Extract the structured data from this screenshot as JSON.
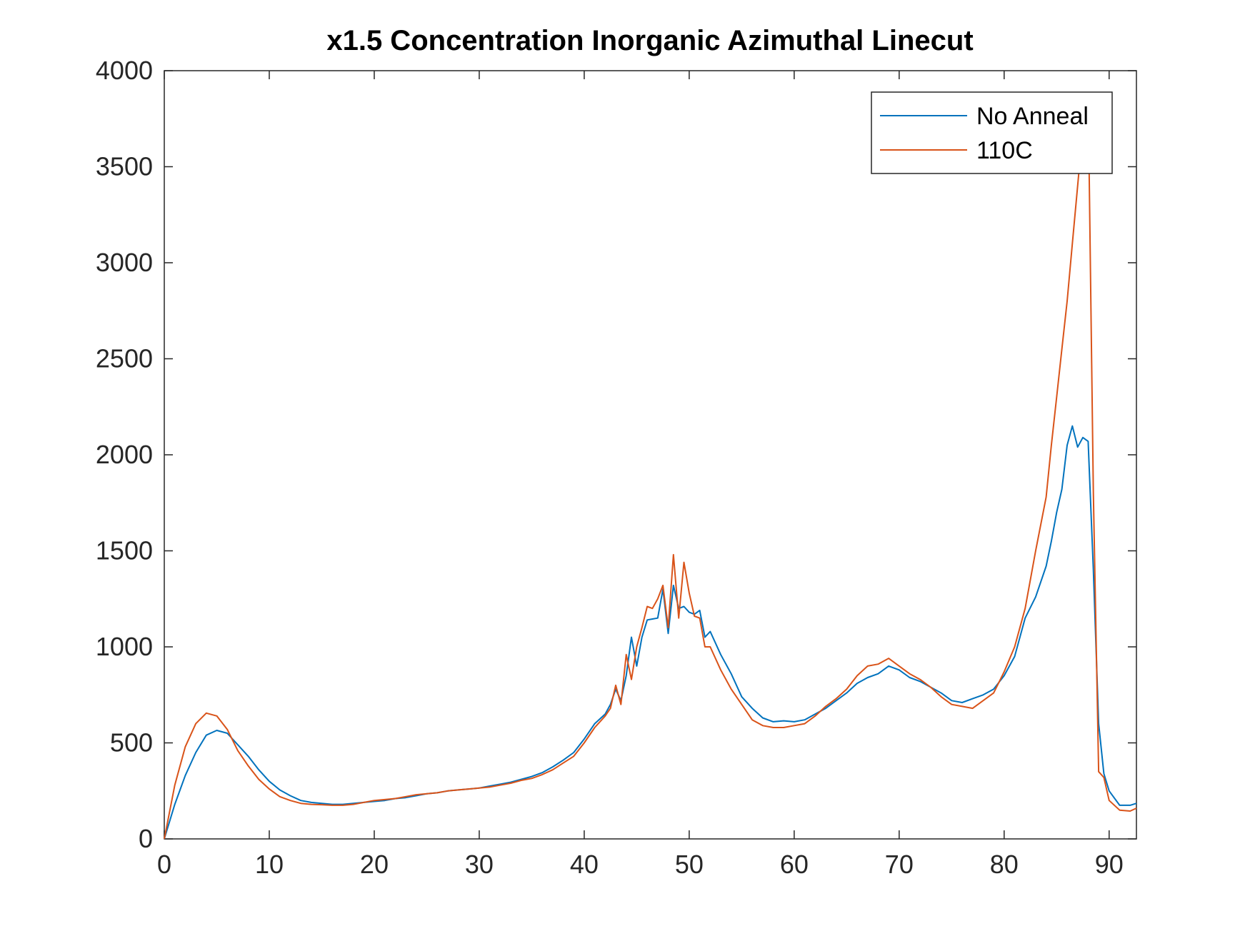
{
  "chart_data": {
    "type": "line",
    "title": "x1.5 Concentration Inorganic Azimuthal Linecut",
    "x": [
      0,
      1,
      2,
      3,
      4,
      5,
      6,
      7,
      8,
      9,
      10,
      11,
      12,
      13,
      14,
      15,
      16,
      17,
      18,
      19,
      20,
      21,
      22,
      23,
      24,
      25,
      26,
      27,
      28,
      29,
      30,
      31,
      32,
      33,
      34,
      35,
      36,
      37,
      38,
      39,
      40,
      41,
      42,
      42.5,
      43,
      43.5,
      44,
      44.5,
      45,
      45.5,
      46,
      46.5,
      47,
      47.5,
      48,
      48.5,
      49,
      49.5,
      50,
      50.5,
      51,
      51.5,
      52,
      53,
      54,
      55,
      56,
      57,
      58,
      59,
      60,
      61,
      62,
      63,
      64,
      65,
      66,
      67,
      68,
      69,
      70,
      71,
      72,
      73,
      74,
      75,
      76,
      77,
      78,
      79,
      80,
      81,
      82,
      83,
      84,
      84.5,
      85,
      85.5,
      86,
      86.5,
      87,
      87.5,
      88,
      88.5,
      89,
      89.5,
      90,
      91,
      92,
      92.6
    ],
    "series": [
      {
        "name": "No Anneal",
        "color": "#0072BD",
        "values": [
          0,
          180,
          330,
          450,
          540,
          565,
          550,
          490,
          430,
          360,
          300,
          255,
          225,
          200,
          190,
          185,
          180,
          180,
          185,
          190,
          195,
          200,
          210,
          215,
          225,
          235,
          240,
          250,
          255,
          260,
          265,
          275,
          285,
          295,
          310,
          325,
          345,
          375,
          410,
          450,
          520,
          600,
          650,
          700,
          780,
          720,
          850,
          1050,
          900,
          1050,
          1140,
          1145,
          1150,
          1300,
          1070,
          1320,
          1200,
          1210,
          1180,
          1170,
          1190,
          1050,
          1080,
          960,
          860,
          740,
          680,
          630,
          610,
          615,
          610,
          620,
          650,
          680,
          720,
          760,
          810,
          840,
          860,
          900,
          880,
          840,
          820,
          790,
          760,
          720,
          710,
          730,
          750,
          780,
          850,
          950,
          1150,
          1260,
          1420,
          1550,
          1700,
          1820,
          2050,
          2150,
          2040,
          2090,
          2070,
          1400,
          600,
          340,
          250,
          175,
          175,
          185
        ]
      },
      {
        "name": "110C",
        "color": "#D95319",
        "values": [
          0,
          280,
          480,
          600,
          655,
          640,
          570,
          460,
          380,
          310,
          260,
          220,
          200,
          185,
          180,
          178,
          175,
          175,
          180,
          190,
          200,
          205,
          210,
          220,
          230,
          235,
          240,
          250,
          255,
          260,
          265,
          270,
          280,
          290,
          305,
          315,
          335,
          360,
          395,
          430,
          500,
          580,
          640,
          680,
          800,
          700,
          960,
          830,
          1000,
          1100,
          1210,
          1200,
          1250,
          1320,
          1100,
          1480,
          1150,
          1440,
          1280,
          1160,
          1150,
          1000,
          1000,
          880,
          780,
          700,
          620,
          590,
          580,
          580,
          590,
          600,
          640,
          690,
          730,
          780,
          850,
          900,
          910,
          940,
          900,
          860,
          830,
          790,
          740,
          700,
          690,
          680,
          720,
          760,
          870,
          1000,
          1200,
          1500,
          1780,
          2050,
          2300,
          2550,
          2800,
          3100,
          3400,
          3700,
          3880,
          1800,
          350,
          320,
          200,
          150,
          145,
          160
        ]
      }
    ],
    "xlim": [
      0,
      92.6
    ],
    "ylim": [
      0,
      4000
    ],
    "xticks": [
      0,
      10,
      20,
      30,
      40,
      50,
      60,
      70,
      80,
      90
    ],
    "yticks": [
      0,
      500,
      1000,
      1500,
      2000,
      2500,
      3000,
      3500,
      4000
    ],
    "legend": "upper right"
  }
}
